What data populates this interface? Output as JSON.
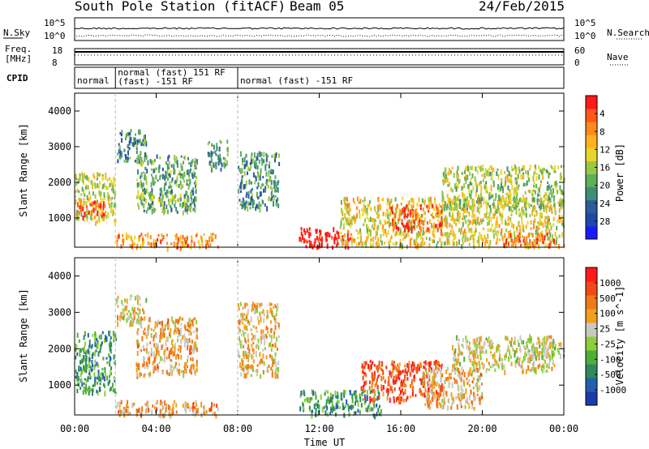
{
  "header": {
    "station": "South Pole Station (fitACF)",
    "beam": "Beam 05",
    "date": "24/Feb/2015"
  },
  "top_panels": {
    "nsky_label": "N.Sky",
    "nsky_ticks": [
      "10^5",
      "10^0"
    ],
    "nsearch_label": "N.Search",
    "nsearch_ticks": [
      "10^5",
      "10^0"
    ],
    "freq_label": [
      "Freq.",
      "[MHz]"
    ],
    "freq_ticks": [
      "18",
      "8"
    ],
    "nave_label": "Nave",
    "nave_ticks": [
      "60",
      "0"
    ],
    "cpid_label": "CPID",
    "cpid_segments": [
      {
        "start_hour": 0.0,
        "end_hour": 2.0,
        "lines": [
          "normal"
        ]
      },
      {
        "start_hour": 2.0,
        "end_hour": 8.0,
        "lines": [
          "normal (fast) 151 RF",
          "(fast) -151 RF"
        ]
      },
      {
        "start_hour": 8.0,
        "end_hour": 24.0,
        "lines": [
          "normal (fast) -151 RF"
        ]
      }
    ]
  },
  "axes": {
    "xlabel": "Time UT",
    "xticks": [
      "00:00",
      "04:00",
      "08:00",
      "12:00",
      "16:00",
      "20:00",
      "00:00"
    ],
    "ylabel": "Slant Range [km]",
    "yticks": [
      "1000",
      "2000",
      "3000",
      "4000"
    ]
  },
  "chart_data": [
    {
      "type": "heatmap",
      "title": "",
      "xlabel": "Time UT",
      "ylabel": "Slant Range [km]",
      "x_range_hours": [
        0,
        24
      ],
      "y_range_km": [
        180,
        4500
      ],
      "colorbar": {
        "label": "Power [dB]",
        "ticks": [
          "4",
          "8",
          "12",
          "16",
          "20",
          "24",
          "28"
        ],
        "range": [
          0,
          30
        ],
        "colors": [
          "#1a1aff",
          "#1c4aa8",
          "#2f5b9b",
          "#3d8f74",
          "#5fae5a",
          "#9cc648",
          "#e8d62b",
          "#ffb21c",
          "#ff8a1a",
          "#ff5a1a",
          "#ff1a1a"
        ]
      },
      "regions": [
        {
          "t0": 0.0,
          "t1": 2.0,
          "r0": 900,
          "r1": 2300,
          "level": 0.55
        },
        {
          "t0": 0.0,
          "t1": 1.5,
          "r0": 1050,
          "r1": 1500,
          "level": 0.9
        },
        {
          "t0": 2.0,
          "t1": 3.5,
          "r0": 2600,
          "r1": 3500,
          "level": 0.3
        },
        {
          "t0": 3.0,
          "t1": 6.0,
          "r0": 1200,
          "r1": 2800,
          "level": 0.4
        },
        {
          "t0": 6.5,
          "t1": 7.5,
          "r0": 2400,
          "r1": 3200,
          "level": 0.35
        },
        {
          "t0": 8.0,
          "t1": 10.0,
          "r0": 1300,
          "r1": 2900,
          "level": 0.35
        },
        {
          "t0": 2.0,
          "t1": 7.0,
          "r0": 200,
          "r1": 600,
          "level": 0.75
        },
        {
          "t0": 11.0,
          "t1": 13.5,
          "r0": 200,
          "r1": 750,
          "level": 1.0
        },
        {
          "t0": 13.0,
          "t1": 24.0,
          "r0": 250,
          "r1": 1600,
          "level": 0.6
        },
        {
          "t0": 15.5,
          "t1": 18.0,
          "r0": 700,
          "r1": 1400,
          "level": 0.9
        },
        {
          "t0": 18.0,
          "t1": 24.0,
          "r0": 1300,
          "r1": 2500,
          "level": 0.5
        },
        {
          "t0": 21.0,
          "t1": 23.5,
          "r0": 250,
          "r1": 600,
          "level": 0.85
        }
      ]
    },
    {
      "type": "heatmap",
      "title": "",
      "xlabel": "Time UT",
      "ylabel": "Slant Range [km]",
      "x_range_hours": [
        0,
        24
      ],
      "y_range_km": [
        180,
        4500
      ],
      "colorbar": {
        "label": "Velocity [m s^-1]",
        "ticks": [
          "1000",
          "500",
          "100",
          "25",
          "-25",
          "-100",
          "-500",
          "-1000"
        ],
        "range": [
          -1200,
          1200
        ],
        "colors": [
          "#1c3aa8",
          "#245fae",
          "#2e8a5a",
          "#4fae3a",
          "#8ccf3a",
          "#c8c8c0",
          "#f0a020",
          "#f07818",
          "#f04818",
          "#ff1a1a"
        ]
      },
      "regions": [
        {
          "t0": 0.0,
          "t1": 2.0,
          "r0": 800,
          "r1": 2500,
          "level": 0.3
        },
        {
          "t0": 2.0,
          "t1": 3.5,
          "r0": 2700,
          "r1": 3500,
          "level": 0.55
        },
        {
          "t0": 3.0,
          "t1": 6.0,
          "r0": 1300,
          "r1": 2900,
          "level": 0.65
        },
        {
          "t0": 8.0,
          "t1": 10.0,
          "r0": 1300,
          "r1": 3300,
          "level": 0.6
        },
        {
          "t0": 2.0,
          "t1": 7.0,
          "r0": 200,
          "r1": 600,
          "level": 0.7
        },
        {
          "t0": 11.0,
          "t1": 15.0,
          "r0": 200,
          "r1": 900,
          "level": 0.3
        },
        {
          "t0": 14.0,
          "t1": 18.0,
          "r0": 600,
          "r1": 1700,
          "level": 0.85
        },
        {
          "t0": 17.0,
          "t1": 20.0,
          "r0": 400,
          "r1": 1500,
          "level": 0.65
        },
        {
          "t0": 18.5,
          "t1": 23.5,
          "r0": 1400,
          "r1": 2400,
          "level": 0.55
        },
        {
          "t0": 22.0,
          "t1": 24.0,
          "r0": 1800,
          "r1": 2300,
          "level": 0.5
        }
      ]
    }
  ]
}
